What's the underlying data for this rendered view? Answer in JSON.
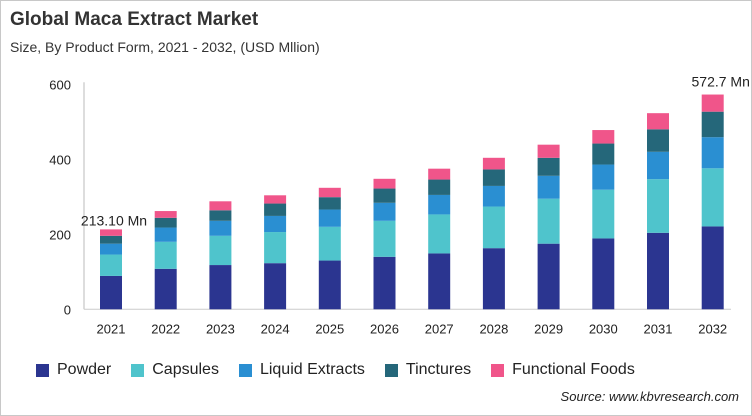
{
  "chart_data": {
    "type": "bar",
    "stacked": true,
    "title": "Global Maca Extract Market",
    "subtitle": "Size, By Product Form, 2021 - 2032, (USD Mllion)",
    "categories": [
      "2021",
      "2022",
      "2023",
      "2024",
      "2025",
      "2026",
      "2027",
      "2028",
      "2029",
      "2030",
      "2031",
      "2032"
    ],
    "ylim": [
      0,
      600
    ],
    "yticks": [
      0,
      200,
      400,
      600
    ],
    "grid": false,
    "legend": "bottom",
    "series": [
      {
        "name": "Powder",
        "color": "#2b3590",
        "values": [
          89,
          108,
          118,
          123,
          130,
          140,
          149,
          163,
          175,
          189,
          204,
          221
        ]
      },
      {
        "name": "Capsules",
        "color": "#4fc4cc",
        "values": [
          57,
          72,
          78,
          83,
          90,
          96,
          104,
          111,
          120,
          130,
          143,
          155
        ]
      },
      {
        "name": "Liquid Extracts",
        "color": "#2a8fd2",
        "values": [
          29,
          38,
          40,
          43,
          46,
          48,
          52,
          55,
          61,
          67,
          73,
          83
        ]
      },
      {
        "name": "Tinctures",
        "color": "#25677a",
        "values": [
          21,
          26,
          28,
          33,
          33,
          38,
          41,
          44,
          48,
          56,
          60,
          68
        ]
      },
      {
        "name": "Functional Foods",
        "color": "#f0558a",
        "values": [
          17.1,
          18,
          24,
          22,
          25,
          26,
          29,
          31,
          35,
          36,
          43,
          45.7
        ]
      }
    ],
    "annotations": [
      {
        "category": "2021",
        "text": "213.10 Mn"
      },
      {
        "category": "2032",
        "text": "572.7 Mn"
      }
    ]
  },
  "source": "Source: www.kbvresearch.com"
}
